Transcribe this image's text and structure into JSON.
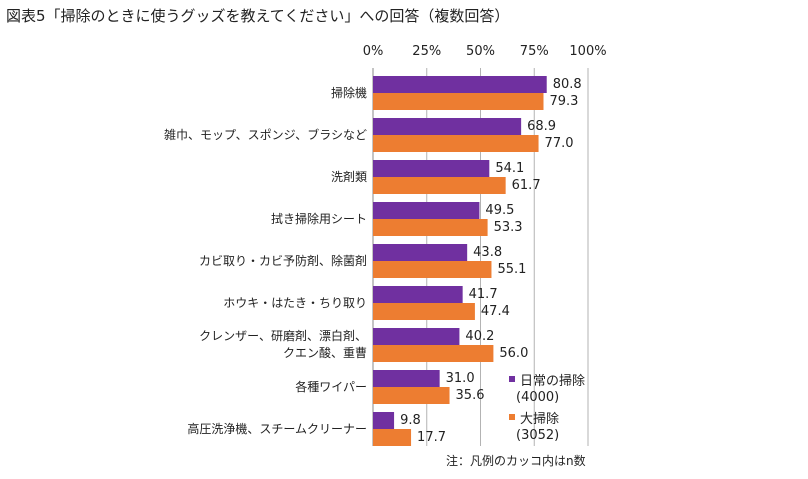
{
  "title": "図表5「掃除のときに使うグッズを教えてください」への回答（複数回答）",
  "note": "注：凡例のカッコ内はn数",
  "colors": {
    "series1": "#7030A0",
    "series2": "#ED7D31",
    "grid": "#b3b3b3",
    "axis": "#888888"
  },
  "chart_data": {
    "type": "bar",
    "orientation": "horizontal",
    "title": "図表5「掃除のときに使うグッズを教えてください」への回答（複数回答）",
    "xlim": [
      0,
      100
    ],
    "tick_labels": [
      "0%",
      "25%",
      "50%",
      "75%",
      "100%"
    ],
    "categories": [
      [
        "掃除機"
      ],
      [
        "雑巾、モップ、スポンジ、ブラシなど"
      ],
      [
        "洗剤類"
      ],
      [
        "拭き掃除用シート"
      ],
      [
        "カビ取り・カビ予防剤、除菌剤"
      ],
      [
        "ホウキ・はたき・ちり取り"
      ],
      [
        "クレンザー、研磨剤、漂白剤、",
        "クエン酸、重曹"
      ],
      [
        "各種ワイパー"
      ],
      [
        "高圧洗浄機、スチームクリーナー"
      ]
    ],
    "series": [
      {
        "name": "日常の掃除",
        "n": "(4000)",
        "values": [
          80.8,
          68.9,
          54.1,
          49.5,
          43.8,
          41.7,
          40.2,
          31.0,
          9.8
        ]
      },
      {
        "name": "大掃除",
        "n": "(3052)",
        "values": [
          79.3,
          77.0,
          61.7,
          53.3,
          55.1,
          47.4,
          56.0,
          35.6,
          17.7
        ]
      }
    ],
    "legend_position": "bottom-right"
  }
}
